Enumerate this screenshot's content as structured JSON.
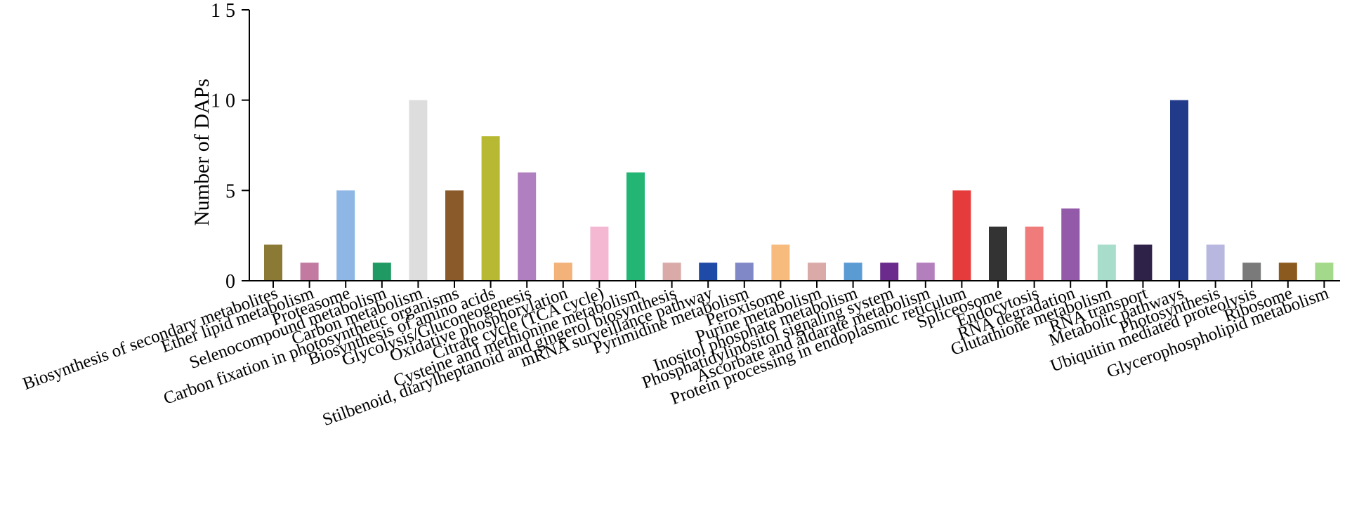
{
  "chart_data": {
    "type": "bar",
    "ylabel": "Number of DAPs",
    "xlabel": "",
    "ylim": [
      0,
      15
    ],
    "yticks": [
      0,
      5,
      10,
      15
    ],
    "ytick_labels": [
      "0",
      "5",
      "1 0",
      "1 5"
    ],
    "grid": false,
    "categories": [
      "Biosynthesis of secondary metabolites",
      "Ether lipid metabolism",
      "Proteasome",
      "Selenocompound metabolism",
      "Carbon metabolism",
      "Carbon fixation in photosynthetic organisms",
      "Biosynthesis of amino acids",
      "Glycolysis/Gluconeogenesis",
      "Oxidative phosphorylation",
      "Citrate cycle (TCA cycle)",
      "Cysteine and methionine metabolism",
      "Stilbenoid, diarylheptanoid and gingerol biosynthesis",
      "mRNA surveillance pathway",
      "Pyrimidine metabolism",
      "Peroxisome",
      "Purine metabolism",
      "Inositol phosphate metabolism",
      "Phosphatidylinositol signaling system",
      "Ascorbate and aldarate metabolism",
      "Protein processing in endoplasmic reticulum",
      "Spliceosome",
      "Endocytosis",
      "RNA degradation",
      "Glutathione metabolism",
      "RNA transport",
      "Metabolic pathways",
      "Photosynthesis",
      "Ubiquitin mediated proteolysis",
      "Ribosome",
      "Glycerophospholipid metabolism"
    ],
    "values": [
      2,
      1,
      5,
      1,
      10,
      5,
      8,
      6,
      1,
      3,
      6,
      1,
      1,
      1,
      2,
      1,
      1,
      1,
      1,
      5,
      3,
      3,
      4,
      2,
      2,
      10,
      2,
      1,
      1,
      1
    ],
    "colors": [
      "#8b7a35",
      "#c27aa0",
      "#8fb7e6",
      "#1f9a62",
      "#dddddd",
      "#8b5a2b",
      "#b7b933",
      "#b07fbf",
      "#f2b27a",
      "#f4b8d3",
      "#22b573",
      "#d9aaa8",
      "#1f4aa6",
      "#8188c8",
      "#f7bb7e",
      "#d9aaa8",
      "#5a9bd4",
      "#6a2b8c",
      "#b37fbd",
      "#e53b3b",
      "#333333",
      "#ef7b7b",
      "#925aa8",
      "#a8dccb",
      "#2f2248",
      "#223a8a",
      "#b8b7e0",
      "#7a7a7a",
      "#8b5a1e",
      "#a3d98a"
    ]
  }
}
